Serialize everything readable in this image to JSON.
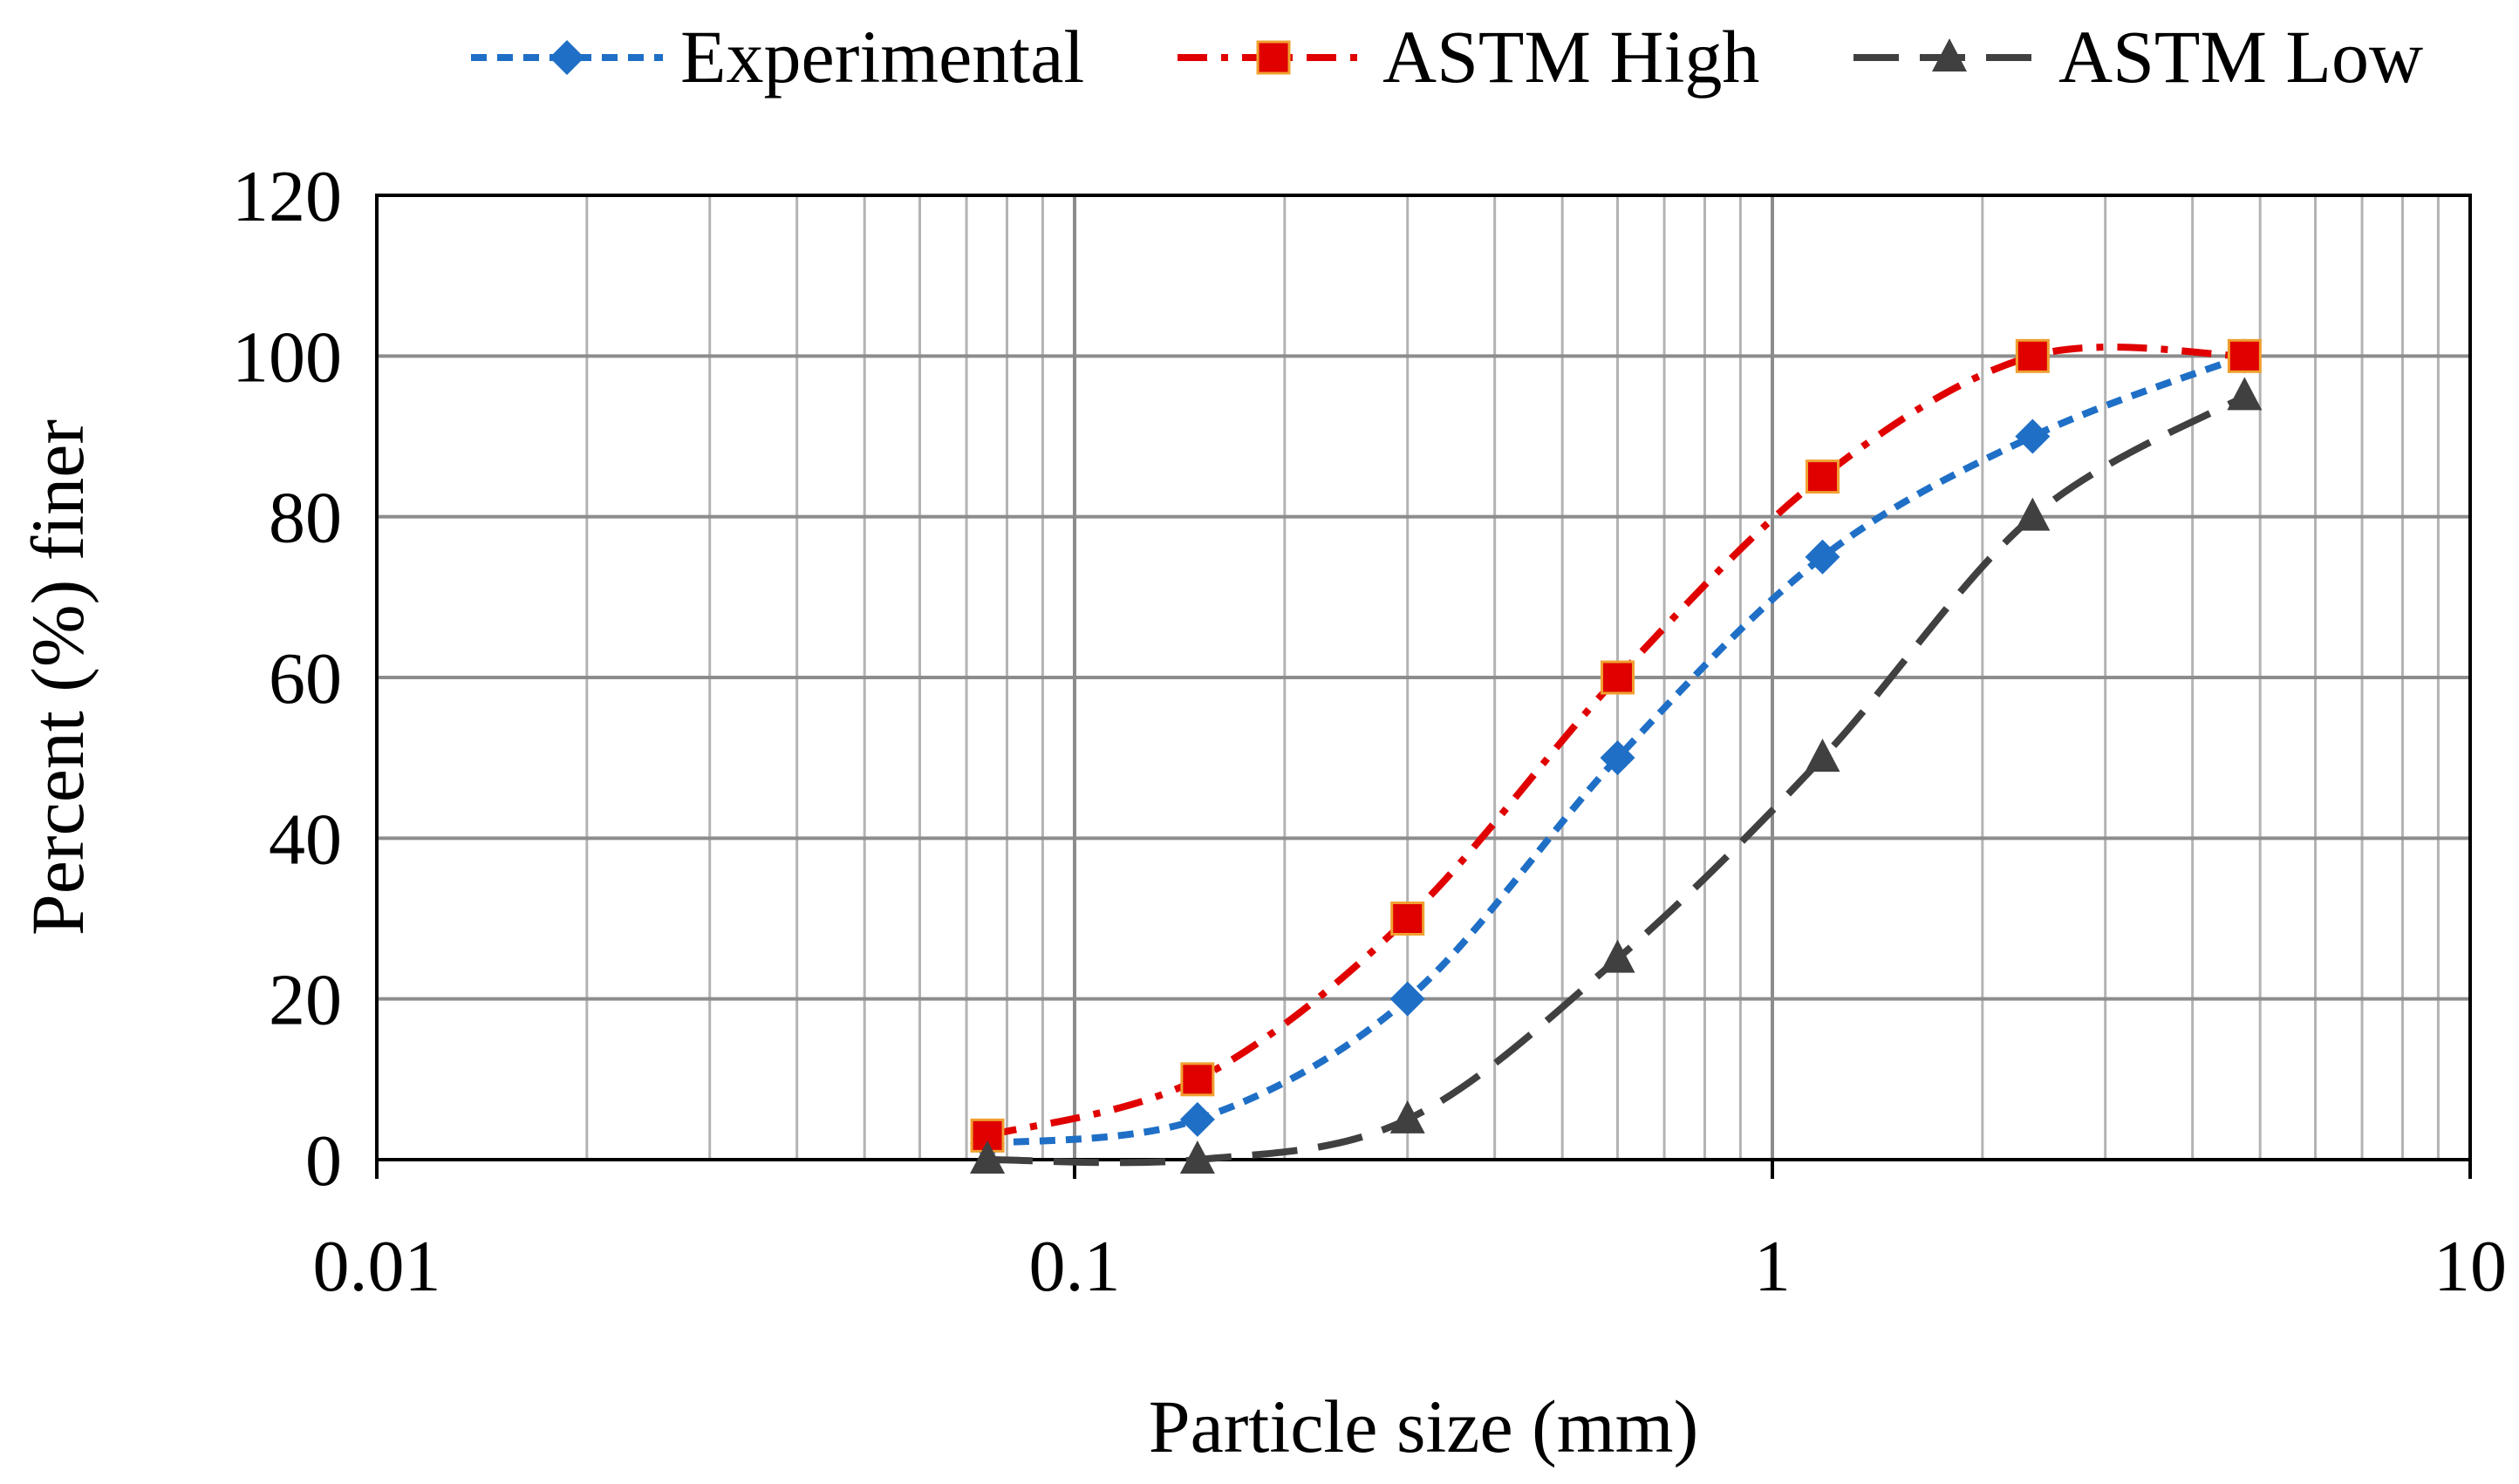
{
  "chart_data": {
    "type": "line",
    "title": "",
    "xlabel": "Particle size (mm)",
    "ylabel": "Percent (%) finer",
    "xscale": "log",
    "xlim": [
      0.01,
      10
    ],
    "ylim": [
      0,
      120
    ],
    "xticks": [
      {
        "value": 0.01,
        "label": "0.01"
      },
      {
        "value": 0.1,
        "label": "0.1"
      },
      {
        "value": 1,
        "label": "1"
      },
      {
        "value": 10,
        "label": "10"
      }
    ],
    "yticks": [
      {
        "value": 0,
        "label": "0"
      },
      {
        "value": 20,
        "label": "20"
      },
      {
        "value": 40,
        "label": "40"
      },
      {
        "value": 60,
        "label": "60"
      },
      {
        "value": 80,
        "label": "80"
      },
      {
        "value": 100,
        "label": "100"
      },
      {
        "value": 120,
        "label": "120"
      }
    ],
    "grid": true,
    "legend_position": "top",
    "series": [
      {
        "name": "Experimental",
        "color": "#1f6fc6",
        "marker": "diamond",
        "line_style": "short-dash",
        "x": [
          0.075,
          0.15,
          0.3,
          0.6,
          1.18,
          2.36,
          4.75
        ],
        "values": [
          2,
          5,
          20,
          50,
          75,
          90,
          100
        ]
      },
      {
        "name": "ASTM High",
        "color": "#e00000",
        "marker_edge": "#f0a030",
        "marker": "square",
        "line_style": "dash-dot",
        "x": [
          0.075,
          0.15,
          0.3,
          0.6,
          1.18,
          2.36,
          4.75
        ],
        "values": [
          3,
          10,
          30,
          60,
          85,
          100,
          100
        ]
      },
      {
        "name": "ASTM Low",
        "color": "#404040",
        "marker": "triangle",
        "line_style": "long-dash",
        "x": [
          0.075,
          0.15,
          0.3,
          0.6,
          1.18,
          2.36,
          4.75
        ],
        "values": [
          0,
          0,
          5,
          25,
          50,
          80,
          95
        ]
      }
    ]
  }
}
